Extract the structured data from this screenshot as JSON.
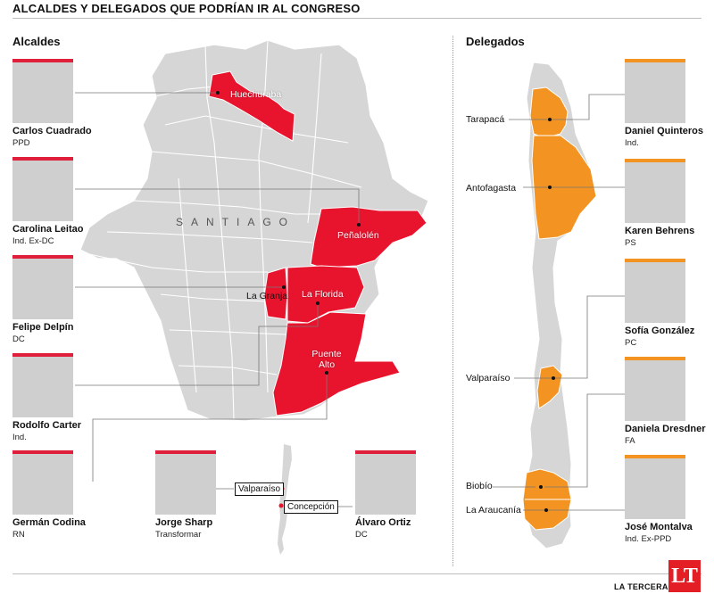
{
  "title": "ALCALDES Y DELEGADOS QUE PODRÍAN IR AL CONGRESO",
  "sections": {
    "alcaldes": "Alcaldes",
    "delegados": "Delegados"
  },
  "colors": {
    "mayor_accent": "#e0203a",
    "delegate_accent": "#f39321",
    "map_gray": "#d6d6d6",
    "logo": "#e31e24"
  },
  "santiago_label": "SANTIAGO",
  "comunas": [
    "Huechuraba",
    "Peñalolén",
    "La Granja",
    "La Florida",
    "Puente Alto"
  ],
  "cities": [
    "Valparaíso",
    "Concepción"
  ],
  "regions": [
    "Tarapacá",
    "Antofagasta",
    "Valparaíso",
    "Biobío",
    "La Araucanía"
  ],
  "alcaldes": [
    {
      "name": "Carlos Cuadrado",
      "party": "PPD"
    },
    {
      "name": "Carolina Leitao",
      "party": "Ind. Ex-DC"
    },
    {
      "name": "Felipe Delpín",
      "party": "DC"
    },
    {
      "name": "Rodolfo Carter",
      "party": "Ind."
    },
    {
      "name": "Germán Codina",
      "party": "RN"
    },
    {
      "name": "Jorge Sharp",
      "party": "Transformar"
    },
    {
      "name": "Álvaro Ortiz",
      "party": "DC"
    }
  ],
  "delegados": [
    {
      "name": "Daniel Quinteros",
      "party": "Ind."
    },
    {
      "name": "Karen Behrens",
      "party": "PS"
    },
    {
      "name": "Sofía González",
      "party": "PC"
    },
    {
      "name": "Daniela Dresdner",
      "party": "FA"
    },
    {
      "name": "José Montalva",
      "party": "Ind. Ex-PPD"
    }
  ],
  "logo": {
    "text": "LT",
    "brand": "LA TERCERA"
  }
}
